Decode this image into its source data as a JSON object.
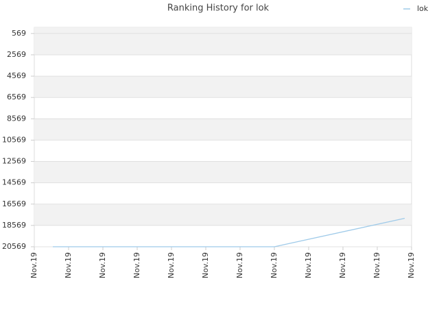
{
  "chart_data": {
    "type": "line",
    "title": "Ranking History for lok",
    "x": [
      0.54,
      7,
      10.8
    ],
    "series": [
      {
        "name": "lok",
        "color": "#9ecae9",
        "values": [
          20569,
          20569,
          17900
        ]
      }
    ],
    "xlim": [
      0,
      11
    ],
    "xticks": [
      {
        "value": 0,
        "label": "Nov.19"
      },
      {
        "value": 1,
        "label": "Nov.19"
      },
      {
        "value": 2,
        "label": "Nov.19"
      },
      {
        "value": 3,
        "label": "Nov.19"
      },
      {
        "value": 4,
        "label": "Nov.19"
      },
      {
        "value": 5,
        "label": "Nov.19"
      },
      {
        "value": 6,
        "label": "Nov.19"
      },
      {
        "value": 7,
        "label": "Nov.19"
      },
      {
        "value": 8,
        "label": "Nov.19"
      },
      {
        "value": 9,
        "label": "Nov.19"
      },
      {
        "value": 10,
        "label": "Nov.19"
      },
      {
        "value": 11,
        "label": "Nov.19"
      }
    ],
    "ylim": [
      20569,
      0
    ],
    "yticks": [
      569,
      2569,
      4569,
      6569,
      8569,
      10569,
      12569,
      14569,
      16569,
      18569,
      20569
    ],
    "grid": true,
    "legend": "upper right"
  }
}
